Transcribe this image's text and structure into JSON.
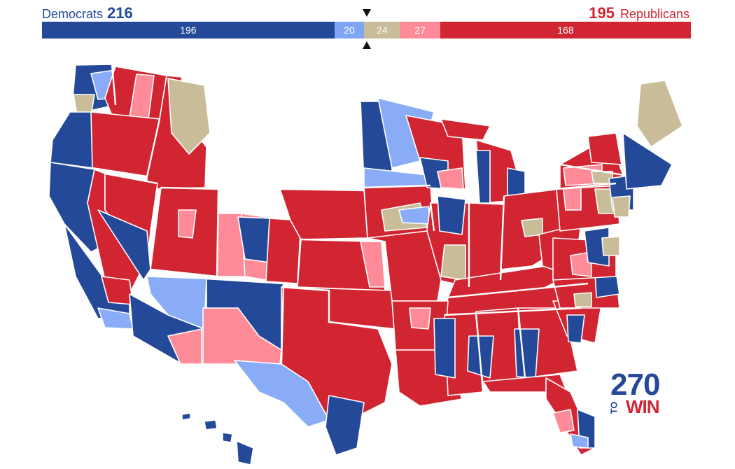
{
  "header": {
    "dem_label": "Democrats",
    "dem_total": "216",
    "rep_total": "195",
    "rep_label": "Republicans"
  },
  "bar": {
    "segments": [
      {
        "key": "safe_dem",
        "value": 196,
        "label": "196",
        "color": "#244999"
      },
      {
        "key": "lean_dem",
        "value": 20,
        "label": "20",
        "color": "#7fa6f5"
      },
      {
        "key": "tossup",
        "value": 24,
        "label": "24",
        "color": "#c9bc98"
      },
      {
        "key": "lean_rep",
        "value": 27,
        "label": "27",
        "color": "#ff8b98"
      },
      {
        "key": "safe_rep",
        "value": 168,
        "label": "168",
        "color": "#d22532"
      }
    ],
    "majority_marker": "218"
  },
  "map": {
    "colors": {
      "safe_dem": "#244999",
      "lean_dem": "#8aacf7",
      "tossup": "#c9bc98",
      "lean_rep": "#ff8b98",
      "safe_rep": "#d22532",
      "border": "#ffffff"
    }
  },
  "logo": {
    "num": "270",
    "to": "TO",
    "win": "WIN"
  }
}
